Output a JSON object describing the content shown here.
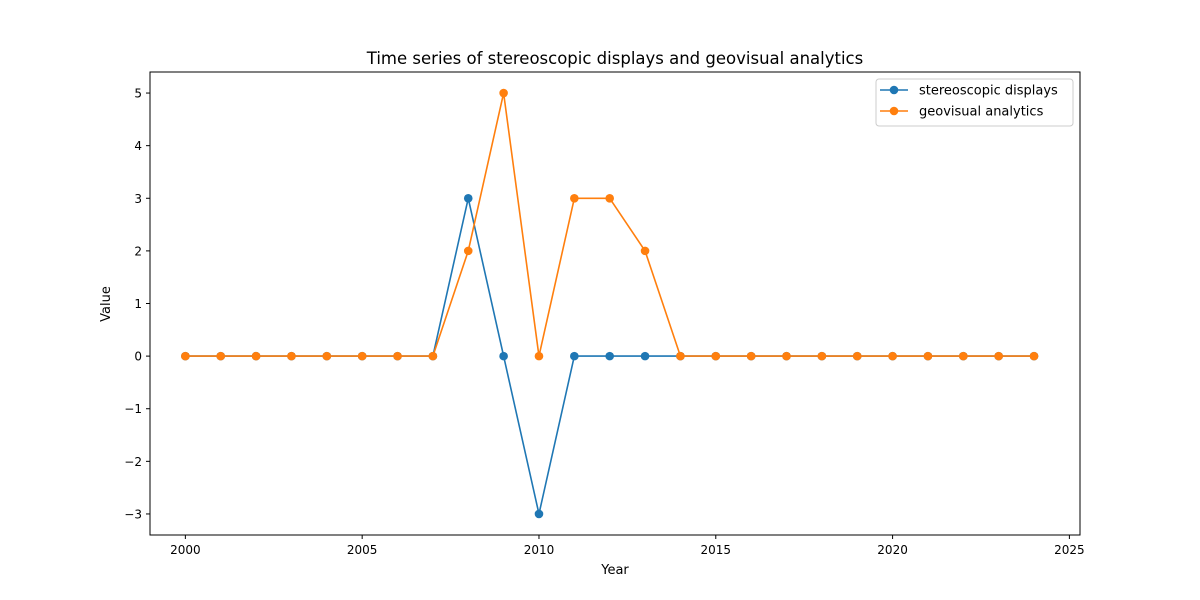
{
  "chart_data": {
    "type": "line",
    "title": "Time series of stereoscopic displays and geovisual analytics",
    "xlabel": "Year",
    "ylabel": "Value",
    "xlim": [
      1999.0,
      2025.3
    ],
    "ylim": [
      -3.4,
      5.4
    ],
    "xticks": [
      2000,
      2005,
      2010,
      2015,
      2020,
      2025
    ],
    "yticks": [
      -3,
      -2,
      -1,
      0,
      1,
      2,
      3,
      4,
      5
    ],
    "ytick_labels": [
      "−3",
      "−2",
      "−1",
      "0",
      "1",
      "2",
      "3",
      "4",
      "5"
    ],
    "grid": false,
    "legend_position": "top-right",
    "x": [
      2000,
      2001,
      2002,
      2003,
      2004,
      2005,
      2006,
      2007,
      2008,
      2009,
      2010,
      2011,
      2012,
      2013,
      2014,
      2015,
      2016,
      2017,
      2018,
      2019,
      2020,
      2021,
      2022,
      2023,
      2024
    ],
    "series": [
      {
        "name": "stereoscopic displays",
        "color": "#1f77b4",
        "values": [
          0,
          0,
          0,
          0,
          0,
          0,
          0,
          0,
          3,
          0,
          -3,
          0,
          0,
          0,
          0,
          0,
          0,
          0,
          0,
          0,
          0,
          0,
          0,
          0,
          0
        ]
      },
      {
        "name": "geovisual analytics",
        "color": "#ff7f0e",
        "values": [
          0,
          0,
          0,
          0,
          0,
          0,
          0,
          0,
          2,
          5,
          0,
          3,
          3,
          2,
          0,
          0,
          0,
          0,
          0,
          0,
          0,
          0,
          0,
          0,
          0
        ]
      }
    ]
  }
}
